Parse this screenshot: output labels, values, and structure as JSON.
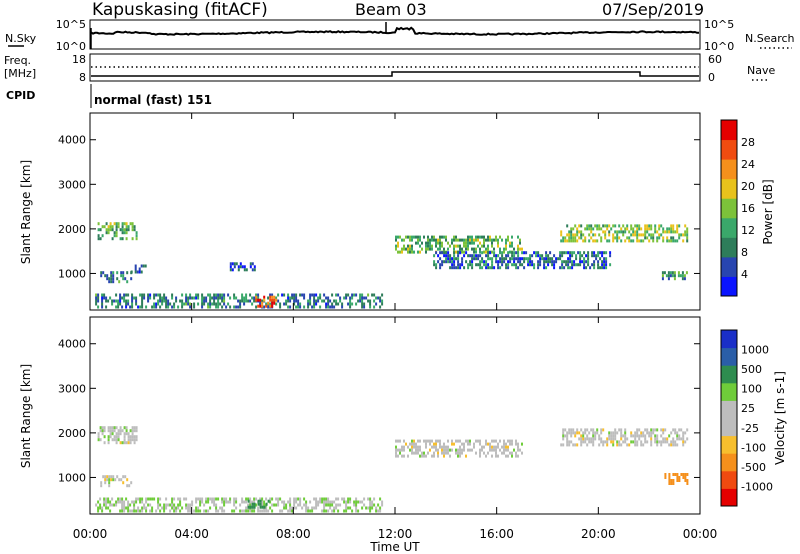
{
  "header": {
    "station": "Kapuskasing (fitACF)",
    "beam": "Beam 03",
    "date": "07/Sep/2019"
  },
  "noise_panel": {
    "left_label": "N.Sky",
    "right_label": "N.Search",
    "left_ticks": [
      "10^5",
      "10^0"
    ],
    "right_ticks": [
      "10^5",
      "10^0"
    ]
  },
  "freq_panel": {
    "left_label_1": "Freq.",
    "left_label_2": "[MHz]",
    "right_label": "Nave",
    "left_ticks": [
      "18",
      "8"
    ],
    "right_ticks": [
      "60",
      "0"
    ]
  },
  "cpid": {
    "label": "CPID",
    "value": "normal (fast) 151"
  },
  "x_axis": {
    "title": "Time UT",
    "ticks": [
      "00:00",
      "04:00",
      "08:00",
      "12:00",
      "16:00",
      "20:00",
      "00:00"
    ]
  },
  "colors": {
    "power_scale": [
      "#0a14ff",
      "#2845b0",
      "#2e7d5a",
      "#3aa86a",
      "#7cc23a",
      "#e8c21c",
      "#f5901c",
      "#f04c10",
      "#e50000"
    ],
    "velocity_scale": [
      "#e50000",
      "#f04a10",
      "#f5901c",
      "#f7bf2e",
      "#bdbdbd",
      "#bdbdbd",
      "#6fcc3a",
      "#2e8c4f",
      "#2a5ea8",
      "#1a2fc8"
    ]
  },
  "chart_data": [
    {
      "type": "heatmap",
      "ylabel": "Slant Range [km]",
      "xlabel": "",
      "ylim": [
        180,
        4600
      ],
      "yticks": [
        "1000",
        "2000",
        "3000",
        "4000"
      ],
      "colorbar": {
        "title": "Power [dB]",
        "ticks": [
          "4",
          "8",
          "12",
          "16",
          "20",
          "24",
          "28"
        ]
      },
      "regions": [
        {
          "t": [
            0.3,
            1.8
          ],
          "r": [
            1750,
            2150
          ],
          "value": 14
        },
        {
          "t": [
            0.4,
            1.6
          ],
          "r": [
            800,
            1050
          ],
          "value": 10
        },
        {
          "t": [
            1.6,
            2.2
          ],
          "r": [
            1050,
            1200
          ],
          "value": 8
        },
        {
          "t": [
            5.5,
            6.5
          ],
          "r": [
            1100,
            1250
          ],
          "value": 6
        },
        {
          "t": [
            0.2,
            11.5
          ],
          "r": [
            250,
            550
          ],
          "value": 10
        },
        {
          "t": [
            6.5,
            7.3
          ],
          "r": [
            280,
            500
          ],
          "value": 26
        },
        {
          "t": [
            12.0,
            17.0
          ],
          "r": [
            1450,
            1850
          ],
          "value": 14
        },
        {
          "t": [
            13.5,
            20.5
          ],
          "r": [
            1150,
            1500
          ],
          "value": 9
        },
        {
          "t": [
            18.5,
            23.5
          ],
          "r": [
            1750,
            2100
          ],
          "value": 16
        },
        {
          "t": [
            22.5,
            23.5
          ],
          "r": [
            850,
            1050
          ],
          "value": 12
        }
      ]
    },
    {
      "type": "heatmap",
      "ylabel": "Slant Range [km]",
      "xlabel": "Time UT",
      "ylim": [
        180,
        4600
      ],
      "yticks": [
        "1000",
        "2000",
        "3000",
        "4000"
      ],
      "colorbar": {
        "title": "Velocity [m s-1]",
        "ticks": [
          "1000",
          "500",
          "100",
          "25",
          "-25",
          "-100",
          "-500",
          "-1000"
        ]
      },
      "regions": [
        {
          "t": [
            0.3,
            1.8
          ],
          "r": [
            1750,
            2150
          ],
          "value": 0
        },
        {
          "t": [
            0.4,
            1.6
          ],
          "r": [
            800,
            1050
          ],
          "value": 0
        },
        {
          "t": [
            0.2,
            11.5
          ],
          "r": [
            250,
            550
          ],
          "value": 20
        },
        {
          "t": [
            6.2,
            7.0
          ],
          "r": [
            300,
            500
          ],
          "value": 150
        },
        {
          "t": [
            12.0,
            17.0
          ],
          "r": [
            1450,
            1850
          ],
          "value": 0
        },
        {
          "t": [
            18.5,
            23.5
          ],
          "r": [
            1750,
            2100
          ],
          "value": 0
        },
        {
          "t": [
            22.6,
            23.5
          ],
          "r": [
            850,
            1100
          ],
          "value": -200
        }
      ]
    }
  ]
}
